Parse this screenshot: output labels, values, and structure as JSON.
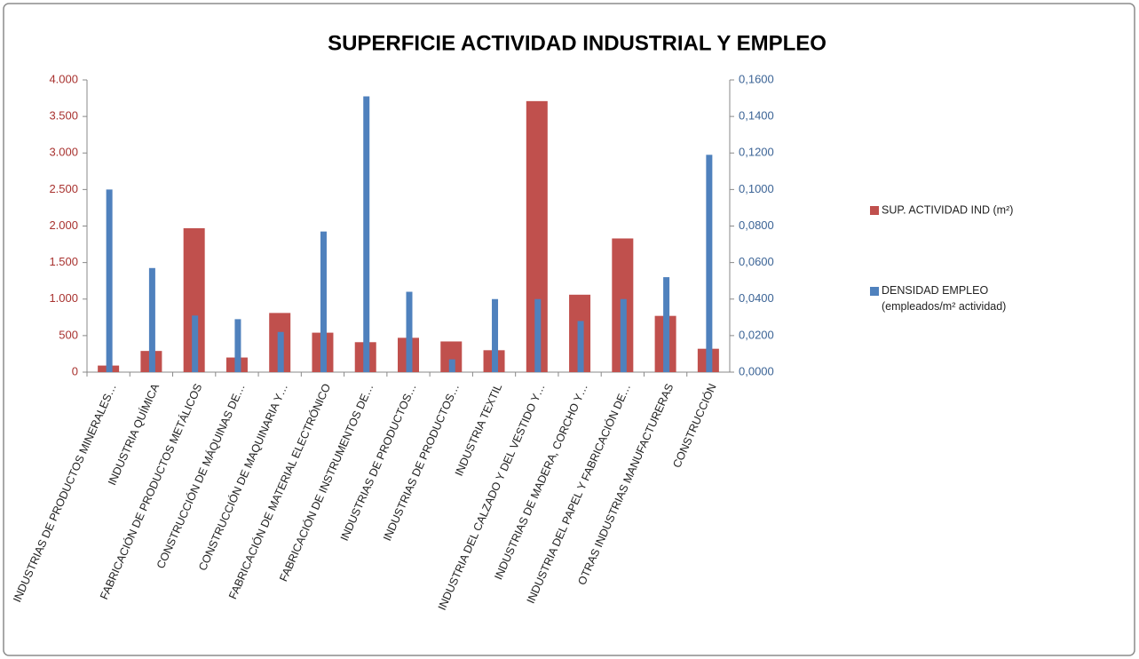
{
  "chart_data": {
    "type": "bar",
    "title": "SUPERFICIE ACTIVIDAD INDUSTRIAL Y EMPLEO",
    "categories": [
      "INDUSTRIAS DE PRODUCTOS MINERALES…",
      "INDUSTRIA  QUÍMICA",
      "FABRICACIÓN DE PRODUCTOS METÁLICOS",
      "CONSTRUCCIÓN DE MÁQUINAS DE…",
      "CONSTRUCCIÓN DE MAQUINARIA Y…",
      "FABRICACIÓN DE MATERIAL ELECTRÓNICO",
      "FABRICACIÓN DE INSTRUMENTOS  DE…",
      "INDUSTRIAS DE PRODUCTOS…",
      "INDUSTRIAS DE PRODUCTOS…",
      "INDUSTRIA  TEXTIL",
      "INDUSTRIA  DEL CALZADO Y DEL VESTIDO  Y…",
      "INDUSTRIAS  DE MADERA, CORCHO Y…",
      "INDUSTRIA  DEL PAPEL Y FABRICACIÓN DE…",
      "OTRAS INDUSTRIAS  MANUFACTURERAS",
      "CONSTRUCCIÓN"
    ],
    "series": [
      {
        "name": "SUP. ACTIVIDAD IND (m²)",
        "color": "#c0504d",
        "values": [
          90,
          290,
          1970,
          200,
          810,
          540,
          410,
          470,
          420,
          300,
          3710,
          1060,
          1830,
          770,
          320
        ]
      },
      {
        "name": "DENSIDAD EMPLEO\n(empleados/m² actividad)",
        "color": "#4f81bd",
        "axis": "y2",
        "values": [
          0.1,
          0.057,
          0.031,
          0.029,
          0.022,
          0.077,
          0.151,
          0.044,
          0.007,
          0.04,
          0.04,
          0.028,
          0.04,
          0.052,
          0.119
        ]
      }
    ],
    "ylim": [
      0,
      4000
    ],
    "yticks": [
      0,
      500,
      {
        "value": 1000,
        "label": "1.000"
      },
      {
        "value": 1500,
        "label": "1.500"
      },
      {
        "value": 2000,
        "label": "2.000"
      },
      {
        "value": 2500,
        "label": "2.500"
      },
      {
        "value": 3000,
        "label": "3.000"
      },
      {
        "value": 3500,
        "label": "3.500"
      },
      {
        "value": 4000,
        "label": "4.000"
      }
    ],
    "y2lim": [
      0,
      0.16
    ],
    "y2ticks": [
      {
        "value": 0,
        "label": "0,0000"
      },
      {
        "value": 0.02,
        "label": "0,0200"
      },
      {
        "value": 0.04,
        "label": "0,0400"
      },
      {
        "value": 0.06,
        "label": "0,0600"
      },
      {
        "value": 0.08,
        "label": "0,0800"
      },
      {
        "value": 0.1,
        "label": "0,1000"
      },
      {
        "value": 0.12,
        "label": "0,1200"
      },
      {
        "value": 0.14,
        "label": "0,1400"
      },
      {
        "value": 0.16,
        "label": "0,1600"
      }
    ],
    "grid": false
  }
}
